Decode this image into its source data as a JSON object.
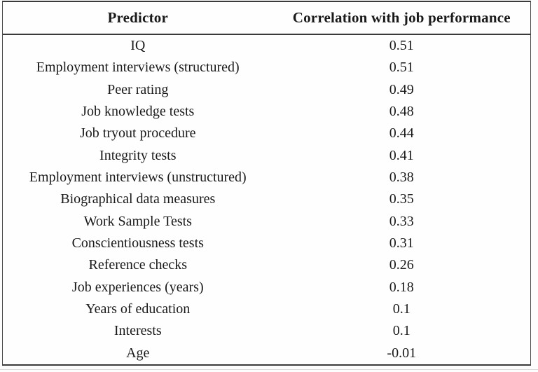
{
  "chart_data": {
    "type": "table",
    "columns": [
      "Predictor",
      "Correlation with job performance"
    ],
    "rows": [
      {
        "predictor": "IQ",
        "correlation": "0.51"
      },
      {
        "predictor": "Employment interviews (structured)",
        "correlation": "0.51"
      },
      {
        "predictor": "Peer rating",
        "correlation": "0.49"
      },
      {
        "predictor": "Job knowledge tests",
        "correlation": "0.48"
      },
      {
        "predictor": "Job tryout procedure",
        "correlation": "0.44"
      },
      {
        "predictor": "Integrity tests",
        "correlation": "0.41"
      },
      {
        "predictor": "Employment interviews (unstructured)",
        "correlation": "0.38"
      },
      {
        "predictor": "Biographical data measures",
        "correlation": "0.35"
      },
      {
        "predictor": "Work Sample Tests",
        "correlation": "0.33"
      },
      {
        "predictor": "Conscientiousness tests",
        "correlation": "0.31"
      },
      {
        "predictor": "Reference checks",
        "correlation": "0.26"
      },
      {
        "predictor": "Job experiences (years)",
        "correlation": "0.18"
      },
      {
        "predictor": "Years of education",
        "correlation": "0.1"
      },
      {
        "predictor": "Interests",
        "correlation": "0.1"
      },
      {
        "predictor": "Age",
        "correlation": "-0.01"
      }
    ],
    "layout": {
      "header_bold": true,
      "cell_alignment": "center",
      "grid": "horizontal-rules-only"
    }
  },
  "colors": {
    "border": "#3b3b3b",
    "text": "#1a1a1a",
    "background": "#fdfdfd"
  }
}
